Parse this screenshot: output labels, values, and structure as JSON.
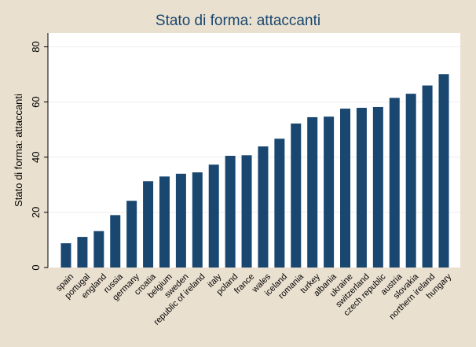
{
  "chart_data": {
    "type": "bar",
    "title": "Stato di forma: attaccanti",
    "xlabel": "",
    "ylabel": "Stato di forma: attaccanti",
    "ylim": [
      0,
      85
    ],
    "yticks": [
      0,
      20,
      40,
      60,
      80
    ],
    "grid": true,
    "legend": "none",
    "bar_color": "#1a476f",
    "background_color": "#eae0cf",
    "plot_background_color": "#ffffff",
    "categories": [
      "spain",
      "portugal",
      "england",
      "russia",
      "germany",
      "croatia",
      "belgium",
      "sweden",
      "republic of ireland",
      "italy",
      "poland",
      "france",
      "wales",
      "iceland",
      "romania",
      "turkey",
      "albania",
      "ukraine",
      "switzerland",
      "czech republic",
      "austria",
      "slovakia",
      "northern ireland",
      "hungary"
    ],
    "values": [
      8.8,
      11.1,
      13.2,
      19.0,
      24.2,
      31.3,
      33.0,
      34.0,
      34.5,
      37.3,
      40.5,
      40.7,
      43.9,
      46.7,
      52.2,
      54.5,
      54.7,
      57.6,
      57.9,
      58.2,
      61.5,
      63.0,
      66.0,
      70.1
    ]
  }
}
